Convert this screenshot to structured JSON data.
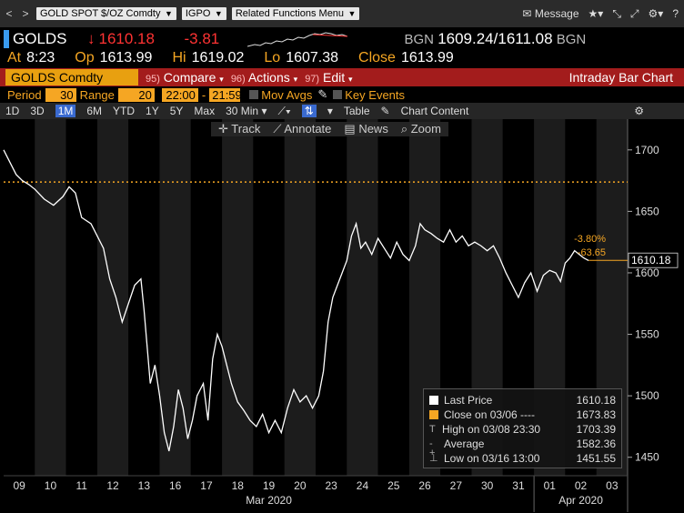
{
  "toolbar": {
    "security_field": "GOLD SPOT $/OZ Comdty",
    "function_field": "IGPO",
    "related_menu": "Related Functions Menu",
    "message": "Message"
  },
  "quote": {
    "ticker": "GOLDS",
    "last": "1610.18",
    "change": "-3.81",
    "bgn_label_1": "BGN",
    "bid": "1609.24",
    "ask": "1611.08",
    "bgn_label_2": "BGN"
  },
  "atline": {
    "at_label": "At",
    "at_value": "8:23",
    "op_label": "Op",
    "op_value": "1613.99",
    "hi_label": "Hi",
    "hi_value": "1619.02",
    "lo_label": "Lo",
    "lo_value": "1607.38",
    "close_label": "Close",
    "close_value": "1613.99"
  },
  "redbar": {
    "ticker": "GOLDS Comdty",
    "compare_num": "95)",
    "compare": "Compare",
    "actions_num": "96)",
    "actions": "Actions",
    "edit_num": "97)",
    "edit": "Edit",
    "title": "Intraday Bar Chart"
  },
  "period": {
    "period_label": "Period",
    "period_value": "30",
    "range_label": "Range",
    "range_value": "20",
    "time_from": "22:00",
    "time_to": "21:59",
    "mov_avgs": "Mov Avgs",
    "key_events": "Key Events"
  },
  "ranges": {
    "items": [
      "1D",
      "3D",
      "1M",
      "6M",
      "YTD",
      "1Y",
      "5Y",
      "Max",
      "30 Min"
    ],
    "active": "1M",
    "table": "Table",
    "chart_content": "Chart Content"
  },
  "chart_tools": {
    "track": "Track",
    "annotate": "Annotate",
    "news": "News",
    "zoom": "Zoom"
  },
  "chart_data": {
    "type": "line",
    "series_name": "Last Price",
    "y_ticks": [
      1700,
      1650,
      1600,
      1550,
      1500,
      1450
    ],
    "ylim": [
      1435,
      1725
    ],
    "x_ticks": [
      "09",
      "10",
      "11",
      "12",
      "13",
      "16",
      "17",
      "18",
      "19",
      "20",
      "23",
      "24",
      "25",
      "26",
      "27",
      "30",
      "31",
      "01",
      "02",
      "03"
    ],
    "month_labels": [
      "Mar 2020",
      "Apr 2020"
    ],
    "close_line": 1673.83,
    "current_price_label": "1610.18",
    "pct_change": "-3.80%",
    "abs_change": "-63.65",
    "points": [
      [
        0,
        1700
      ],
      [
        0.2,
        1690
      ],
      [
        0.4,
        1680
      ],
      [
        0.6,
        1675
      ],
      [
        0.8,
        1672
      ],
      [
        1.0,
        1668
      ],
      [
        1.3,
        1660
      ],
      [
        1.6,
        1655
      ],
      [
        1.9,
        1662
      ],
      [
        2.1,
        1670
      ],
      [
        2.3,
        1665
      ],
      [
        2.5,
        1645
      ],
      [
        2.8,
        1640
      ],
      [
        3.0,
        1630
      ],
      [
        3.2,
        1620
      ],
      [
        3.4,
        1595
      ],
      [
        3.6,
        1580
      ],
      [
        3.8,
        1560
      ],
      [
        4.0,
        1575
      ],
      [
        4.2,
        1590
      ],
      [
        4.4,
        1595
      ],
      [
        4.5,
        1570
      ],
      [
        4.6,
        1540
      ],
      [
        4.7,
        1510
      ],
      [
        4.85,
        1525
      ],
      [
        5.0,
        1500
      ],
      [
        5.15,
        1470
      ],
      [
        5.3,
        1455
      ],
      [
        5.45,
        1475
      ],
      [
        5.6,
        1505
      ],
      [
        5.75,
        1490
      ],
      [
        5.9,
        1465
      ],
      [
        6.05,
        1480
      ],
      [
        6.2,
        1500
      ],
      [
        6.4,
        1510
      ],
      [
        6.55,
        1480
      ],
      [
        6.7,
        1530
      ],
      [
        6.85,
        1550
      ],
      [
        7.0,
        1540
      ],
      [
        7.15,
        1525
      ],
      [
        7.3,
        1510
      ],
      [
        7.5,
        1495
      ],
      [
        7.7,
        1488
      ],
      [
        7.9,
        1480
      ],
      [
        8.1,
        1475
      ],
      [
        8.3,
        1485
      ],
      [
        8.5,
        1470
      ],
      [
        8.7,
        1480
      ],
      [
        8.9,
        1470
      ],
      [
        9.1,
        1490
      ],
      [
        9.3,
        1505
      ],
      [
        9.5,
        1495
      ],
      [
        9.7,
        1500
      ],
      [
        9.9,
        1490
      ],
      [
        10.1,
        1500
      ],
      [
        10.25,
        1520
      ],
      [
        10.4,
        1560
      ],
      [
        10.55,
        1580
      ],
      [
        10.7,
        1590
      ],
      [
        10.85,
        1600
      ],
      [
        11.0,
        1610
      ],
      [
        11.15,
        1630
      ],
      [
        11.3,
        1640
      ],
      [
        11.45,
        1620
      ],
      [
        11.6,
        1625
      ],
      [
        11.8,
        1615
      ],
      [
        12.0,
        1628
      ],
      [
        12.2,
        1620
      ],
      [
        12.4,
        1612
      ],
      [
        12.6,
        1625
      ],
      [
        12.8,
        1615
      ],
      [
        13.0,
        1610
      ],
      [
        13.2,
        1622
      ],
      [
        13.35,
        1640
      ],
      [
        13.5,
        1635
      ],
      [
        13.7,
        1632
      ],
      [
        13.9,
        1628
      ],
      [
        14.1,
        1625
      ],
      [
        14.3,
        1635
      ],
      [
        14.5,
        1625
      ],
      [
        14.7,
        1630
      ],
      [
        14.9,
        1622
      ],
      [
        15.1,
        1625
      ],
      [
        15.3,
        1622
      ],
      [
        15.5,
        1618
      ],
      [
        15.7,
        1622
      ],
      [
        15.9,
        1612
      ],
      [
        16.1,
        1600
      ],
      [
        16.3,
        1590
      ],
      [
        16.5,
        1580
      ],
      [
        16.7,
        1592
      ],
      [
        16.9,
        1600
      ],
      [
        17.1,
        1585
      ],
      [
        17.3,
        1598
      ],
      [
        17.5,
        1602
      ],
      [
        17.7,
        1600
      ],
      [
        17.85,
        1593
      ],
      [
        18.0,
        1608
      ],
      [
        18.15,
        1612
      ],
      [
        18.3,
        1618
      ],
      [
        18.45,
        1615
      ],
      [
        18.6,
        1612
      ],
      [
        18.75,
        1610
      ]
    ]
  },
  "legend": {
    "last_price_label": "Last Price",
    "last_price_value": "1610.18",
    "close_label": "Close on 03/06 ----",
    "close_value": "1673.83",
    "high_label": "High on 03/08 23:30",
    "high_value": "1703.39",
    "average_label": "Average",
    "average_value": "1582.36",
    "low_label": "Low on 03/16 13:00",
    "low_value": "1451.55",
    "colors": {
      "last": "#ffffff",
      "close": "#f5a623"
    }
  }
}
